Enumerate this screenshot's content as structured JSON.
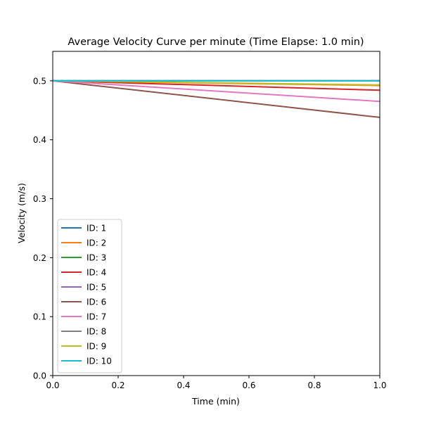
{
  "chart_data": {
    "type": "line",
    "title": "Average Velocity Curve per minute (Time Elapse: 1.0 min)",
    "xlabel": "Time (min)",
    "ylabel": "Velocity (m/s)",
    "xlim": [
      0,
      1
    ],
    "ylim": [
      0,
      0.55
    ],
    "xticks": [
      0.0,
      0.2,
      0.4,
      0.6,
      0.8,
      1.0
    ],
    "xtick_labels": [
      "0.0",
      "0.2",
      "0.4",
      "0.6",
      "0.8",
      "1.0"
    ],
    "yticks": [
      0.0,
      0.1,
      0.2,
      0.3,
      0.4,
      0.5
    ],
    "ytick_labels": [
      "0.0",
      "0.1",
      "0.2",
      "0.3",
      "0.4",
      "0.5"
    ],
    "grid": false,
    "legend_position": "lower-left",
    "series": [
      {
        "name": "ID: 1",
        "color": "#1f77b4",
        "x": [
          0,
          1
        ],
        "y": [
          0.5,
          0.5
        ]
      },
      {
        "name": "ID: 2",
        "color": "#ff7f0e",
        "x": [
          0,
          1
        ],
        "y": [
          0.5,
          0.492
        ]
      },
      {
        "name": "ID: 3",
        "color": "#2ca02c",
        "x": [
          0,
          1
        ],
        "y": [
          0.5,
          0.5
        ]
      },
      {
        "name": "ID: 4",
        "color": "#d62728",
        "x": [
          0,
          1
        ],
        "y": [
          0.5,
          0.484
        ]
      },
      {
        "name": "ID: 5",
        "color": "#9467bd",
        "x": [
          0,
          1
        ],
        "y": [
          0.5,
          0.5
        ]
      },
      {
        "name": "ID: 6",
        "color": "#8c564b",
        "x": [
          0,
          1
        ],
        "y": [
          0.5,
          0.438
        ]
      },
      {
        "name": "ID: 7",
        "color": "#e377c2",
        "x": [
          0,
          1
        ],
        "y": [
          0.5,
          0.465
        ]
      },
      {
        "name": "ID: 8",
        "color": "#7f7f7f",
        "x": [
          0,
          1
        ],
        "y": [
          0.5,
          0.5
        ]
      },
      {
        "name": "ID: 9",
        "color": "#bcbd22",
        "x": [
          0,
          1
        ],
        "y": [
          0.5,
          0.493
        ]
      },
      {
        "name": "ID: 10",
        "color": "#17becf",
        "x": [
          0,
          1
        ],
        "y": [
          0.5,
          0.5
        ]
      }
    ]
  }
}
